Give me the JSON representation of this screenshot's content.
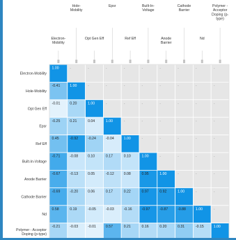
{
  "chart_data": {
    "type": "heatmap",
    "variables": [
      "Electron-Mobility",
      "Hole-Mobility",
      "Opt Gen Eff",
      "Epsr",
      "Ref Eff",
      "Built-In-Voltage",
      "Anode Barrier",
      "Cathode Barrier",
      "Nd",
      "Polymer - Acceptor Doping (p-type)"
    ],
    "header_row1": [
      "Hole-\nMobility",
      "Epsr",
      "Built-In-\nVoltage",
      "Cathode\nBarrier",
      "Polymer -\nAcceptor\nDoping (p-\ntype)"
    ],
    "header_row2": [
      "Electron-\nMobility",
      "Opt Gen Eff",
      "Ref Eff",
      "Anode\nBarrier",
      "Nd"
    ],
    "header_row1_cols": [
      1,
      3,
      5,
      7,
      9
    ],
    "header_row2_cols": [
      0,
      2,
      4,
      6,
      8
    ],
    "row_labels": [
      [
        "Electron-Mobility"
      ],
      [
        "Hole-Mobility"
      ],
      [
        "Opt Gen Eff"
      ],
      [
        "Epsr"
      ],
      [
        "Ref Eff"
      ],
      [
        "Built-In-Voltage"
      ],
      [
        "Anode Barrier"
      ],
      [
        "Cathode Barrier"
      ],
      [
        "Nd"
      ],
      [
        "Polymer - Acceptor",
        "Doping (p-type)"
      ]
    ],
    "matrix": [
      [
        "1.00",
        "-",
        "-",
        "-",
        "-",
        "-",
        "-",
        "-",
        "-",
        "-"
      ],
      [
        "-0.41",
        "1.00",
        "-",
        "-",
        "-",
        "-",
        "-",
        "-",
        "-",
        "-"
      ],
      [
        "-0.01",
        "0.20",
        "1.00",
        "-",
        "-",
        "-",
        "-",
        "-",
        "-",
        "-"
      ],
      [
        "-0.25",
        "0.21",
        "0.04",
        "1.00",
        "-",
        "-",
        "-",
        "-",
        "-",
        "-"
      ],
      [
        "0.45",
        "-0.92",
        "-0.24",
        "-0.04",
        "1.00",
        "-",
        "-",
        "-",
        "-",
        "-"
      ],
      [
        "-0.71",
        "-0.08",
        "0.10",
        "0.17",
        "0.10",
        "1.00",
        "-",
        "-",
        "-",
        "-"
      ],
      [
        "-0.67",
        "-0.13",
        "0.05",
        "-0.12",
        "0.08",
        "0.95",
        "1.00",
        "-",
        "-",
        "-"
      ],
      [
        "-0.69",
        "-0.20",
        "0.06",
        "0.17",
        "0.22",
        "0.97",
        "0.92",
        "1.00",
        "-",
        "-"
      ],
      [
        "0.58",
        "0.19",
        "-0.05",
        "-0.03",
        "-0.16",
        "-0.97",
        "-0.87",
        "-0.88",
        "1.00",
        "-"
      ],
      [
        "-0.21",
        "-0.03",
        "-0.01",
        "0.57",
        "0.21",
        "0.16",
        "0.20",
        "0.31",
        "-0.15",
        "1.00"
      ]
    ],
    "value_range": [
      -1,
      1
    ],
    "colors": {
      "strong": "#1194e6",
      "weak": "#eaf5fd",
      "empty_cell": "#e6e6e6",
      "empty_text": "#9a9a9a",
      "text_dark": "#222222",
      "text_light": "#ffffff",
      "frame": "#2e86c1"
    },
    "legend": "none",
    "grid": true
  }
}
